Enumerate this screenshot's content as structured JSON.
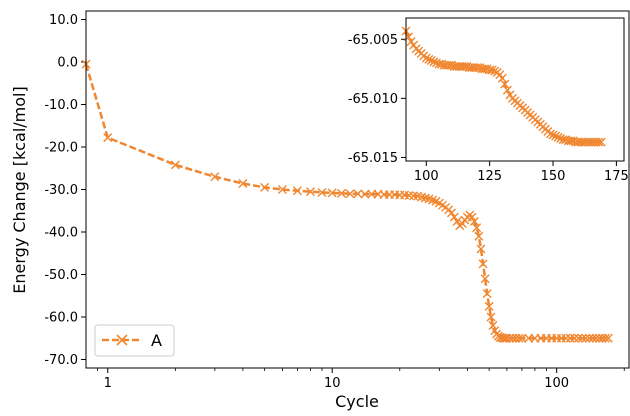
{
  "chart_data": [
    {
      "type": "line",
      "xlabel": "Cycle",
      "ylabel": "Energy Change [kcal/mol]",
      "xscale": "log",
      "xlim": [
        0.8,
        210
      ],
      "ylim": [
        -72,
        12
      ],
      "yticks": [
        10,
        0,
        -10,
        -20,
        -30,
        -40,
        -50,
        -60,
        -70
      ],
      "ytick_labels": [
        "10.0",
        "0.0",
        "-10.0",
        "-20.0",
        "-30.0",
        "-40.0",
        "-50.0",
        "-60.0",
        "-70.0"
      ],
      "xticks": [
        1,
        10,
        100
      ],
      "xtick_labels": [
        "1",
        "10",
        "100"
      ],
      "grid": false,
      "legend": {
        "position": "lower-left",
        "entries": [
          "A"
        ]
      },
      "series": [
        {
          "name": "A",
          "color": "#f0862f",
          "marker": "x",
          "linestyle": "dashed",
          "x": [
            0.8,
            1,
            2,
            3,
            4,
            5,
            6,
            7,
            8,
            9,
            10,
            11,
            12,
            13,
            14,
            15,
            16,
            17,
            18,
            19,
            20,
            21,
            22,
            23,
            24,
            25,
            26,
            27,
            28,
            29,
            30,
            31,
            32,
            33,
            34,
            35,
            36,
            37,
            38,
            39,
            40,
            41,
            42,
            43,
            44,
            45,
            46,
            47,
            48,
            49,
            50,
            51,
            52,
            53,
            54,
            55,
            56,
            57,
            58,
            59,
            60,
            62,
            64,
            66,
            68,
            70,
            75,
            80,
            85,
            90,
            95,
            100,
            105,
            110,
            115,
            120,
            125,
            130,
            135,
            140,
            145,
            150,
            155,
            160,
            165,
            170
          ],
          "y": [
            -0.5,
            -17.8,
            -24.2,
            -27.0,
            -28.6,
            -29.5,
            -30.0,
            -30.3,
            -30.5,
            -30.7,
            -30.8,
            -30.9,
            -31.0,
            -31.0,
            -31.1,
            -31.1,
            -31.1,
            -31.2,
            -31.2,
            -31.2,
            -31.3,
            -31.3,
            -31.4,
            -31.5,
            -31.6,
            -31.8,
            -32.0,
            -32.2,
            -32.5,
            -32.8,
            -33.2,
            -33.7,
            -34.2,
            -34.8,
            -35.5,
            -36.5,
            -37.5,
            -38.5,
            -38.0,
            -37.2,
            -36.5,
            -36.0,
            -36.5,
            -37.5,
            -39.0,
            -41.0,
            -44.0,
            -47.5,
            -51.0,
            -54.5,
            -57.5,
            -60.0,
            -62.0,
            -63.2,
            -64.0,
            -64.5,
            -64.8,
            -64.9,
            -65.0,
            -65.0,
            -65.0,
            -65.0,
            -65.0,
            -65.0,
            -65.0,
            -65.0,
            -65.0,
            -65.0,
            -65.0,
            -65.0,
            -65.0,
            -65.0,
            -65.0,
            -65.0,
            -65.0,
            -65.0,
            -65.0,
            -65.0,
            -65.0,
            -65.0,
            -65.0,
            -65.0,
            -65.0,
            -65.0,
            -65.0,
            -65.0
          ]
        }
      ]
    },
    {
      "type": "line",
      "xlim": [
        92,
        178
      ],
      "ylim": [
        -65.0153,
        -65.0032
      ],
      "xticks": [
        100,
        125,
        150,
        175
      ],
      "xtick_labels": [
        "100",
        "125",
        "150",
        "175"
      ],
      "yticks": [
        -65.005,
        -65.01,
        -65.015
      ],
      "ytick_labels": [
        "-65.005",
        "-65.010",
        "-65.015"
      ],
      "grid": false,
      "series": [
        {
          "color": "#f0862f",
          "marker": "x",
          "linestyle": "dashed",
          "x": [
            92,
            93,
            94,
            95,
            96,
            97,
            98,
            99,
            100,
            101,
            102,
            103,
            104,
            105,
            106,
            107,
            108,
            109,
            110,
            111,
            112,
            113,
            114,
            115,
            116,
            117,
            118,
            119,
            120,
            121,
            122,
            123,
            124,
            125,
            126,
            127,
            128,
            129,
            130,
            131,
            132,
            133,
            134,
            135,
            136,
            137,
            138,
            139,
            140,
            141,
            142,
            143,
            144,
            145,
            146,
            147,
            148,
            149,
            150,
            151,
            152,
            153,
            154,
            155,
            156,
            157,
            158,
            159,
            160,
            161,
            162,
            163,
            164,
            165,
            166,
            167,
            168,
            169
          ],
          "y": [
            -65.0043,
            -65.0048,
            -65.0052,
            -65.0055,
            -65.0058,
            -65.006,
            -65.0062,
            -65.0064,
            -65.0066,
            -65.0067,
            -65.0068,
            -65.0069,
            -65.007,
            -65.0071,
            -65.0071,
            -65.0072,
            -65.0072,
            -65.0072,
            -65.0072,
            -65.0073,
            -65.0073,
            -65.0073,
            -65.0073,
            -65.0073,
            -65.0073,
            -65.0074,
            -65.0074,
            -65.0074,
            -65.0074,
            -65.0074,
            -65.0075,
            -65.0075,
            -65.0075,
            -65.0076,
            -65.0076,
            -65.0077,
            -65.0078,
            -65.008,
            -65.0083,
            -65.0088,
            -65.0093,
            -65.0097,
            -65.01,
            -65.0102,
            -65.0104,
            -65.0106,
            -65.0108,
            -65.011,
            -65.0112,
            -65.0114,
            -65.0116,
            -65.0118,
            -65.012,
            -65.0122,
            -65.0124,
            -65.0126,
            -65.0128,
            -65.013,
            -65.0131,
            -65.0132,
            -65.0133,
            -65.0134,
            -65.0135,
            -65.0135,
            -65.0136,
            -65.0136,
            -65.0136,
            -65.0137,
            -65.0137,
            -65.0137,
            -65.0137,
            -65.0137,
            -65.0137,
            -65.0137,
            -65.0137,
            -65.0137,
            -65.0137,
            -65.0137
          ]
        }
      ]
    }
  ]
}
